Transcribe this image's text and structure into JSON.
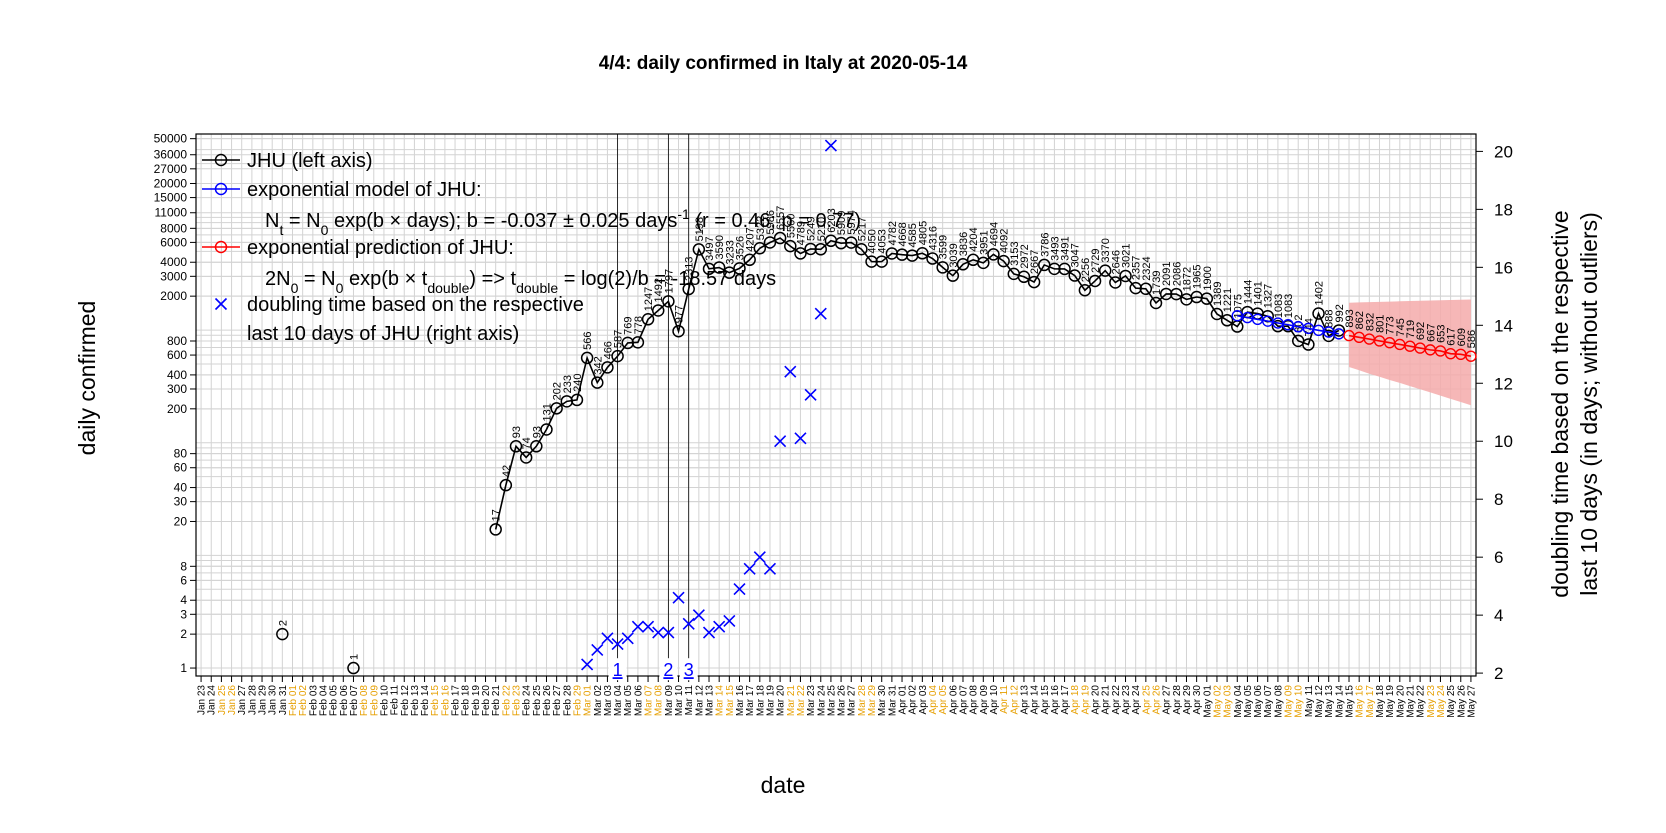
{
  "chart_data": {
    "type": "line",
    "title": "4/4: daily confirmed in Italy at 2020-05-14",
    "xlabel": "date",
    "ylabel": "daily confirmed",
    "ylabel_right_line1": "doubling time based on the respective",
    "ylabel_right_line2": "last 10 days (in days; without outliers)",
    "y_scale": "log",
    "ylim": [
      0.85,
      55000
    ],
    "y2lim": [
      1.9,
      20.6
    ],
    "grid": true,
    "legend_position": "top-left",
    "y_ticks": [
      "1",
      "2",
      "3",
      "4",
      "6",
      "8",
      "20",
      "30",
      "40",
      "60",
      "80",
      "200",
      "300",
      "400",
      "600",
      "800",
      "2000",
      "3000",
      "4000",
      "6000",
      "8000",
      "11000",
      "15000",
      "20000",
      "27000",
      "36000",
      "50000"
    ],
    "y2_ticks": [
      "2",
      "4",
      "6",
      "8",
      "10",
      "12",
      "14",
      "16",
      "18",
      "20"
    ],
    "x_start": "2020-01-23",
    "x_end": "2020-05-27",
    "x_ticks": [
      "Jan 23",
      "Jan 24",
      "Jan 25",
      "Jan 26",
      "Jan 27",
      "Jan 28",
      "Jan 29",
      "Jan 30",
      "Jan 31",
      "Feb 01",
      "Feb 02",
      "Feb 03",
      "Feb 04",
      "Feb 05",
      "Feb 06",
      "Feb 07",
      "Feb 08",
      "Feb 09",
      "Feb 10",
      "Feb 11",
      "Feb 12",
      "Feb 13",
      "Feb 14",
      "Feb 15",
      "Feb 16",
      "Feb 17",
      "Feb 18",
      "Feb 19",
      "Feb 20",
      "Feb 21",
      "Feb 22",
      "Feb 23",
      "Feb 24",
      "Feb 25",
      "Feb 26",
      "Feb 27",
      "Feb 28",
      "Feb 29",
      "Mar 01",
      "Mar 02",
      "Mar 03",
      "Mar 04",
      "Mar 05",
      "Mar 06",
      "Mar 07",
      "Mar 08",
      "Mar 09",
      "Mar 10",
      "Mar 11",
      "Mar 12",
      "Mar 13",
      "Mar 14",
      "Mar 15",
      "Mar 16",
      "Mar 17",
      "Mar 18",
      "Mar 19",
      "Mar 20",
      "Mar 21",
      "Mar 22",
      "Mar 23",
      "Mar 24",
      "Mar 25",
      "Mar 26",
      "Mar 27",
      "Mar 28",
      "Mar 29",
      "Mar 30",
      "Mar 31",
      "Apr 01",
      "Apr 02",
      "Apr 03",
      "Apr 04",
      "Apr 05",
      "Apr 06",
      "Apr 07",
      "Apr 08",
      "Apr 09",
      "Apr 10",
      "Apr 11",
      "Apr 12",
      "Apr 13",
      "Apr 14",
      "Apr 15",
      "Apr 16",
      "Apr 17",
      "Apr 18",
      "Apr 19",
      "Apr 20",
      "Apr 21",
      "Apr 22",
      "Apr 23",
      "Apr 24",
      "Apr 25",
      "Apr 26",
      "Apr 27",
      "Apr 28",
      "Apr 29",
      "Apr 30",
      "May 01",
      "May 02",
      "May 03",
      "May 04",
      "May 05",
      "May 06",
      "May 07",
      "May 08",
      "May 09",
      "May 10",
      "May 11",
      "May 12",
      "May 13",
      "May 14",
      "May 15",
      "May 16",
      "May 17",
      "May 18",
      "May 19",
      "May 20",
      "May 21",
      "May 22",
      "May 23",
      "May 24",
      "May 25",
      "May 26",
      "May 27"
    ],
    "x_tick_weekend_color": "#e69f00",
    "x_tick_weekend_indices": [
      2,
      3,
      9,
      10,
      16,
      17,
      23,
      24,
      30,
      31,
      37,
      38,
      44,
      45,
      51,
      52,
      58,
      59,
      65,
      66,
      72,
      73,
      79,
      80,
      86,
      87,
      93,
      94,
      100,
      101,
      107,
      108,
      114,
      115,
      121,
      122
    ],
    "series": [
      {
        "name": "JHU (left axis)",
        "color": "#000000",
        "marker": "circle",
        "left_axis": true,
        "points": [
          {
            "x": "Jan 31",
            "y": 2,
            "label": "2"
          },
          {
            "x": "Feb 07",
            "y": 1,
            "label": "1"
          },
          {
            "x": "Feb 21",
            "y": 17,
            "label": "17"
          },
          {
            "x": "Feb 22",
            "y": 42,
            "label": "42"
          },
          {
            "x": "Feb 23",
            "y": 93,
            "label": "93"
          },
          {
            "x": "Feb 24",
            "y": 74,
            "label": "74"
          },
          {
            "x": "Feb 25",
            "y": 93,
            "label": "93"
          },
          {
            "x": "Feb 26",
            "y": 131,
            "label": "131"
          },
          {
            "x": "Feb 27",
            "y": 202,
            "label": "202"
          },
          {
            "x": "Feb 28",
            "y": 233,
            "label": "233"
          },
          {
            "x": "Feb 29",
            "y": 240,
            "label": "240"
          },
          {
            "x": "Mar 01",
            "y": 566,
            "label": "566"
          },
          {
            "x": "Mar 02",
            "y": 342,
            "label": "342"
          },
          {
            "x": "Mar 03",
            "y": 466,
            "label": "466"
          },
          {
            "x": "Mar 04",
            "y": 587,
            "label": "587"
          },
          {
            "x": "Mar 05",
            "y": 769,
            "label": "769"
          },
          {
            "x": "Mar 06",
            "y": 778,
            "label": "778"
          },
          {
            "x": "Mar 07",
            "y": 1247,
            "label": "1247"
          },
          {
            "x": "Mar 08",
            "y": 1492,
            "label": "1492"
          },
          {
            "x": "Mar 09",
            "y": 1797,
            "label": "1797"
          },
          {
            "x": "Mar 10",
            "y": 977,
            "label": "977"
          },
          {
            "x": "Mar 11",
            "y": 2313,
            "label": "2313"
          },
          {
            "x": "Mar 12",
            "y": 5198,
            "label": "5198"
          },
          {
            "x": "Mar 13",
            "y": 3497,
            "label": "3497"
          },
          {
            "x": "Mar 14",
            "y": 3590,
            "label": "3590"
          },
          {
            "x": "Mar 15",
            "y": 3233,
            "label": "3233"
          },
          {
            "x": "Mar 16",
            "y": 3526,
            "label": "3526"
          },
          {
            "x": "Mar 17",
            "y": 4207,
            "label": "4207"
          },
          {
            "x": "Mar 18",
            "y": 5322,
            "label": "5322"
          },
          {
            "x": "Mar 19",
            "y": 5986,
            "label": "5986"
          },
          {
            "x": "Mar 20",
            "y": 6557,
            "label": "6557"
          },
          {
            "x": "Mar 21",
            "y": 5560,
            "label": "5560"
          },
          {
            "x": "Mar 22",
            "y": 4789,
            "label": "4789"
          },
          {
            "x": "Mar 23",
            "y": 5249,
            "label": "5249"
          },
          {
            "x": "Mar 24",
            "y": 5210,
            "label": "5210"
          },
          {
            "x": "Mar 25",
            "y": 6203,
            "label": "6203"
          },
          {
            "x": "Mar 26",
            "y": 5909,
            "label": "5909"
          },
          {
            "x": "Mar 27",
            "y": 5974,
            "label": "5974"
          },
          {
            "x": "Mar 28",
            "y": 5217,
            "label": "5217"
          },
          {
            "x": "Mar 29",
            "y": 4050,
            "label": "4050"
          },
          {
            "x": "Mar 30",
            "y": 4053,
            "label": "4053"
          },
          {
            "x": "Mar 31",
            "y": 4782,
            "label": "4782"
          },
          {
            "x": "Apr 01",
            "y": 4668,
            "label": "4668"
          },
          {
            "x": "Apr 02",
            "y": 4585,
            "label": "4585"
          },
          {
            "x": "Apr 03",
            "y": 4805,
            "label": "4805"
          },
          {
            "x": "Apr 04",
            "y": 4316,
            "label": "4316"
          },
          {
            "x": "Apr 05",
            "y": 3599,
            "label": "3599"
          },
          {
            "x": "Apr 06",
            "y": 3039,
            "label": "3039"
          },
          {
            "x": "Apr 07",
            "y": 3836,
            "label": "3836"
          },
          {
            "x": "Apr 08",
            "y": 4204,
            "label": "4204"
          },
          {
            "x": "Apr 09",
            "y": 3951,
            "label": "3951"
          },
          {
            "x": "Apr 10",
            "y": 4694,
            "label": "4694"
          },
          {
            "x": "Apr 11",
            "y": 4092,
            "label": "4092"
          },
          {
            "x": "Apr 12",
            "y": 3153,
            "label": "3153"
          },
          {
            "x": "Apr 13",
            "y": 2972,
            "label": "2972"
          },
          {
            "x": "Apr 14",
            "y": 2667,
            "label": "2667"
          },
          {
            "x": "Apr 15",
            "y": 3786,
            "label": "3786"
          },
          {
            "x": "Apr 16",
            "y": 3493,
            "label": "3493"
          },
          {
            "x": "Apr 17",
            "y": 3491,
            "label": "3491"
          },
          {
            "x": "Apr 18",
            "y": 3047,
            "label": "3047"
          },
          {
            "x": "Apr 19",
            "y": 2256,
            "label": "2256"
          },
          {
            "x": "Apr 20",
            "y": 2729,
            "label": "2729"
          },
          {
            "x": "Apr 21",
            "y": 3370,
            "label": "3370"
          },
          {
            "x": "Apr 22",
            "y": 2646,
            "label": "2646"
          },
          {
            "x": "Apr 23",
            "y": 3021,
            "label": "3021"
          },
          {
            "x": "Apr 24",
            "y": 2357,
            "label": "2357"
          },
          {
            "x": "Apr 25",
            "y": 2324,
            "label": "2324"
          },
          {
            "x": "Apr 26",
            "y": 1739,
            "label": "1739"
          },
          {
            "x": "Apr 27",
            "y": 2091,
            "label": "2091"
          },
          {
            "x": "Apr 28",
            "y": 2086,
            "label": "2086"
          },
          {
            "x": "Apr 29",
            "y": 1872,
            "label": "1872"
          },
          {
            "x": "Apr 30",
            "y": 1965,
            "label": "1965"
          },
          {
            "x": "May 01",
            "y": 1900,
            "label": "1900"
          },
          {
            "x": "May 02",
            "y": 1389,
            "label": "1389"
          },
          {
            "x": "May 03",
            "y": 1221,
            "label": "1221"
          },
          {
            "x": "May 04",
            "y": 1075,
            "label": "1075"
          },
          {
            "x": "May 05",
            "y": 1444,
            "label": "1444"
          },
          {
            "x": "May 06",
            "y": 1401,
            "label": "1401"
          },
          {
            "x": "May 07",
            "y": 1327,
            "label": "1327"
          },
          {
            "x": "May 08",
            "y": 1083,
            "label": "1083"
          },
          {
            "x": "May 09",
            "y": 1083,
            "label": "1083"
          },
          {
            "x": "May 10",
            "y": 802,
            "label": "802"
          },
          {
            "x": "May 11",
            "y": 744,
            "label": "744"
          },
          {
            "x": "May 12",
            "y": 1402,
            "label": "1402"
          },
          {
            "x": "May 13",
            "y": 888,
            "label": "888"
          },
          {
            "x": "May 14",
            "y": 992,
            "label": "992"
          }
        ]
      },
      {
        "name": "exponential model of JHU:",
        "color": "#0000ff",
        "marker": "circle",
        "x": [
          "May 04",
          "May 05",
          "May 06",
          "May 07",
          "May 08",
          "May 09",
          "May 10",
          "May 11",
          "May 12",
          "May 13",
          "May 14"
        ],
        "values": [
          1340,
          1290,
          1245,
          1200,
          1155,
          1115,
          1070,
          1035,
          995,
          960,
          925
        ]
      },
      {
        "name": "exponential prediction of JHU:",
        "color": "#ff0000",
        "marker": "circle",
        "x": [
          "May 15",
          "May 16",
          "May 17",
          "May 18",
          "May 19",
          "May 20",
          "May 21",
          "May 22",
          "May 23",
          "May 24",
          "May 25",
          "May 26",
          "May 27"
        ],
        "values": [
          893,
          862,
          832,
          801,
          773,
          745,
          719,
          692,
          667,
          653,
          617,
          609,
          586
        ],
        "labels": [
          "893",
          "862",
          "832",
          "801",
          "773",
          "745",
          "719",
          "692",
          "667",
          "653",
          "617",
          "609",
          "586"
        ],
        "band_low": [
          470,
          440,
          410,
          385,
          360,
          340,
          318,
          298,
          280,
          262,
          245,
          230,
          215
        ],
        "band_high": [
          1750,
          1760,
          1770,
          1780,
          1790,
          1800,
          1810,
          1820,
          1830,
          1840,
          1850,
          1860,
          1870
        ],
        "band_color": "#f4aaaa"
      },
      {
        "name": "doubling time based on the respective last 10 days of JHU (right axis)",
        "color": "#0000ff",
        "marker": "x",
        "right_axis": true,
        "x": [
          "Mar 01",
          "Mar 02",
          "Mar 03",
          "Mar 04",
          "Mar 05",
          "Mar 06",
          "Mar 07",
          "Mar 08",
          "Mar 09",
          "Mar 10",
          "Mar 11",
          "Mar 12",
          "Mar 13",
          "Mar 14",
          "Mar 15",
          "Mar 16",
          "Mar 17",
          "Mar 18",
          "Mar 19",
          "Mar 20",
          "Mar 21",
          "Mar 22",
          "Mar 23",
          "Mar 24",
          "Mar 25"
        ],
        "values": [
          2.3,
          2.8,
          3.2,
          3.0,
          3.2,
          3.6,
          3.6,
          3.4,
          3.4,
          4.6,
          3.7,
          4.0,
          3.4,
          3.6,
          3.8,
          4.9,
          5.6,
          6.0,
          5.6,
          10.0,
          12.4,
          10.1,
          11.6,
          14.4,
          20.2
        ]
      }
    ],
    "legend": {
      "jhu": "JHU (left axis)",
      "model": "exponential model of JHU:",
      "model_formula": "Nt = N0 exp(b × days); b = -0.037 ± 0.025 days⁻¹ (r = 0.46; p = 0.77)",
      "model_formula_a": "N",
      "model_formula_b": " = N",
      "model_formula_c": " exp(b × days); b = -0.037 ± 0.025 days",
      "model_formula_d": " (r = 0.46; p = 0.77)",
      "sub_t": "t",
      "sub_0": "0",
      "sup_m1": "-1",
      "prediction": "exponential prediction of JHU:",
      "pred_formula_a": "2N",
      "pred_formula_b": " = N",
      "pred_formula_c": " exp(b × t",
      "pred_formula_d": ") => t",
      "pred_formula_e": " = log(2)/b = -18.57 days",
      "sub_double": "double",
      "doubling_line1": "doubling time based on the respective",
      "doubling_line2": "last 10 days of JHU (right axis)"
    },
    "events": [
      {
        "x": "Mar 04",
        "label": "1"
      },
      {
        "x": "Mar 09",
        "label": "2"
      },
      {
        "x": "Mar 11",
        "label": "3"
      }
    ],
    "colors": {
      "observed": "#000000",
      "model": "#0000ff",
      "prediction": "#ff0000",
      "grid": "#d3d3d3",
      "weekend_tick": "#e69f00",
      "event": "#0000ff"
    }
  }
}
